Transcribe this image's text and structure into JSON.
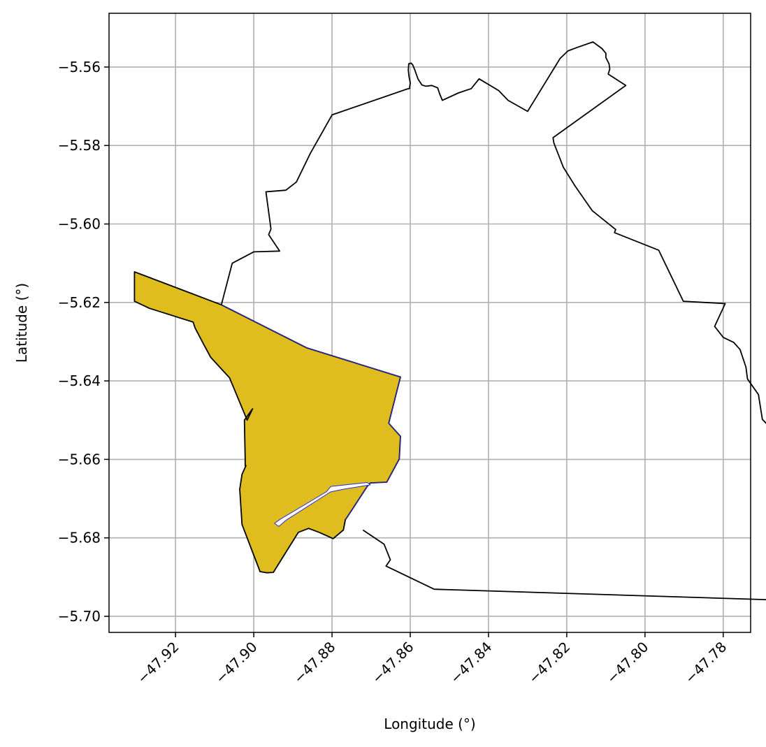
{
  "chart_data": {
    "type": "map",
    "title": "",
    "xlabel": "Longitude (°)",
    "ylabel": "Latitude (°)",
    "xlim": [
      -47.937,
      -47.773
    ],
    "ylim": [
      -5.7041,
      -5.5463
    ],
    "grid": true,
    "x_ticks": [
      {
        "value": -47.92,
        "label": "−47.92"
      },
      {
        "value": -47.9,
        "label": "−47.90"
      },
      {
        "value": -47.88,
        "label": "−47.88"
      },
      {
        "value": -47.86,
        "label": "−47.86"
      },
      {
        "value": -47.84,
        "label": "−47.84"
      },
      {
        "value": -47.82,
        "label": "−47.82"
      },
      {
        "value": -47.8,
        "label": "−47.80"
      },
      {
        "value": -47.78,
        "label": "−47.78"
      }
    ],
    "y_ticks": [
      {
        "value": -5.56,
        "label": "−5.56"
      },
      {
        "value": -5.58,
        "label": "−5.58"
      },
      {
        "value": -5.6,
        "label": "−5.60"
      },
      {
        "value": -5.62,
        "label": "−5.62"
      },
      {
        "value": -5.64,
        "label": "−5.64"
      },
      {
        "value": -5.66,
        "label": "−5.66"
      },
      {
        "value": -5.68,
        "label": "−5.68"
      },
      {
        "value": -5.7,
        "label": "−5.70"
      }
    ],
    "boundary": {
      "stroke": "#000000",
      "fill": "none",
      "coordinates": [
        [
          -47.9083,
          -5.6206
        ],
        [
          -47.9055,
          -5.61
        ],
        [
          -47.9,
          -5.6071
        ],
        [
          -47.8934,
          -5.6069
        ],
        [
          -47.8962,
          -5.6027
        ],
        [
          -47.8956,
          -5.6013
        ],
        [
          -47.8969,
          -5.5918
        ],
        [
          -47.8918,
          -5.5914
        ],
        [
          -47.8891,
          -5.5893
        ],
        [
          -47.8855,
          -5.5819
        ],
        [
          -47.8827,
          -5.577
        ],
        [
          -47.88,
          -5.5722
        ],
        [
          -47.8608,
          -5.5656
        ],
        [
          -47.8602,
          -5.5655
        ],
        [
          -47.86,
          -5.564
        ],
        [
          -47.8603,
          -5.5625
        ],
        [
          -47.8605,
          -5.5608
        ],
        [
          -47.8604,
          -5.5592
        ],
        [
          -47.8598,
          -5.559
        ],
        [
          -47.8594,
          -5.5594
        ],
        [
          -47.8589,
          -5.5606
        ],
        [
          -47.858,
          -5.5631
        ],
        [
          -47.857,
          -5.5646
        ],
        [
          -47.856,
          -5.5649
        ],
        [
          -47.8545,
          -5.5647
        ],
        [
          -47.853,
          -5.5653
        ],
        [
          -47.8525,
          -5.5668
        ],
        [
          -47.8518,
          -5.5685
        ],
        [
          -47.8477,
          -5.5666
        ],
        [
          -47.8444,
          -5.5655
        ],
        [
          -47.8424,
          -5.563
        ],
        [
          -47.8374,
          -5.566
        ],
        [
          -47.835,
          -5.5685
        ],
        [
          -47.83,
          -5.5713
        ],
        [
          -47.8217,
          -5.5578
        ],
        [
          -47.8197,
          -5.5559
        ],
        [
          -47.8173,
          -5.555
        ],
        [
          -47.8133,
          -5.5536
        ],
        [
          -47.811,
          -5.5553
        ],
        [
          -47.81,
          -5.5565
        ],
        [
          -47.81,
          -5.5576
        ],
        [
          -47.8092,
          -5.5592
        ],
        [
          -47.809,
          -5.5605
        ],
        [
          -47.8094,
          -5.5618
        ],
        [
          -47.8049,
          -5.5647
        ],
        [
          -47.8235,
          -5.578
        ],
        [
          -47.8233,
          -5.5793
        ],
        [
          -47.8209,
          -5.5855
        ],
        [
          -47.8179,
          -5.5903
        ],
        [
          -47.8135,
          -5.5966
        ],
        [
          -47.8075,
          -5.6014
        ],
        [
          -47.8078,
          -5.6022
        ],
        [
          -47.7965,
          -5.6067
        ],
        [
          -47.7902,
          -5.6197
        ],
        [
          -47.7795,
          -5.6203
        ],
        [
          -47.7822,
          -5.6261
        ],
        [
          -47.78,
          -5.6289
        ],
        [
          -47.7773,
          -5.6302
        ],
        [
          -47.7757,
          -5.632
        ],
        [
          -47.7742,
          -5.6365
        ],
        [
          -47.7738,
          -5.6395
        ],
        [
          -47.771,
          -5.6435
        ],
        [
          -47.77,
          -5.6498
        ],
        [
          -47.7658,
          -5.6542
        ],
        [
          -47.7647,
          -5.658
        ],
        [
          -47.7625,
          -5.6592
        ],
        [
          -47.761,
          -5.6621
        ],
        [
          -47.7603,
          -5.6665
        ],
        [
          -47.7596,
          -5.6703
        ],
        [
          -47.7537,
          -5.672
        ],
        [
          -47.745,
          -5.697
        ],
        [
          -47.7686,
          -5.6918
        ],
        [
          -47.7683,
          -5.6922
        ],
        [
          -47.7659,
          -5.6941
        ],
        [
          -47.7551,
          -5.6962
        ],
        [
          -47.8539,
          -5.6931
        ],
        [
          -47.8662,
          -5.6872
        ],
        [
          -47.8651,
          -5.6856
        ],
        [
          -47.8667,
          -5.6816
        ],
        [
          -47.8721,
          -5.678
        ]
      ]
    },
    "region": {
      "fill": "#dfbd1f",
      "stroke": "#000000",
      "inner_stroke": "#2a2ad8",
      "outer": [
        [
          -47.9305,
          -5.6122
        ],
        [
          -47.9083,
          -5.6206
        ],
        [
          -47.8864,
          -5.6316
        ],
        [
          -47.8625,
          -5.639
        ],
        [
          -47.8655,
          -5.6508
        ],
        [
          -47.8625,
          -5.6541
        ],
        [
          -47.8628,
          -5.6599
        ],
        [
          -47.866,
          -5.6658
        ],
        [
          -47.8702,
          -5.666
        ],
        [
          -47.871,
          -5.6669
        ],
        [
          -47.8748,
          -5.6727
        ],
        [
          -47.8766,
          -5.6754
        ],
        [
          -47.8771,
          -5.678
        ],
        [
          -47.8797,
          -5.6802
        ],
        [
          -47.8833,
          -5.6786
        ],
        [
          -47.886,
          -5.6776
        ],
        [
          -47.8886,
          -5.6786
        ],
        [
          -47.895,
          -5.6888
        ],
        [
          -47.8966,
          -5.6889
        ],
        [
          -47.8984,
          -5.6886
        ],
        [
          -47.903,
          -5.6766
        ],
        [
          -47.9036,
          -5.6676
        ],
        [
          -47.903,
          -5.6638
        ],
        [
          -47.902,
          -5.6616
        ],
        [
          -47.9022,
          -5.6616
        ],
        [
          -47.9022,
          -5.6598
        ],
        [
          -47.9024,
          -5.65
        ],
        [
          -47.9003,
          -5.6471
        ],
        [
          -47.9017,
          -5.65
        ],
        [
          -47.9062,
          -5.6392
        ],
        [
          -47.911,
          -5.634
        ],
        [
          -47.9129,
          -5.6305
        ],
        [
          -47.915,
          -5.6265
        ],
        [
          -47.9155,
          -5.625
        ],
        [
          -47.9267,
          -5.6215
        ],
        [
          -47.9305,
          -5.6197
        ]
      ],
      "divider": [
        [
          -47.8947,
          -5.6763
        ],
        [
          -47.8933,
          -5.6753
        ],
        [
          -47.8815,
          -5.6683
        ],
        [
          -47.8803,
          -5.6669
        ],
        [
          -47.871,
          -5.6659
        ],
        [
          -47.8702,
          -5.6665
        ],
        [
          -47.8771,
          -5.6676
        ],
        [
          -47.8804,
          -5.6683
        ],
        [
          -47.8916,
          -5.6754
        ],
        [
          -47.8936,
          -5.6771
        ]
      ]
    }
  }
}
